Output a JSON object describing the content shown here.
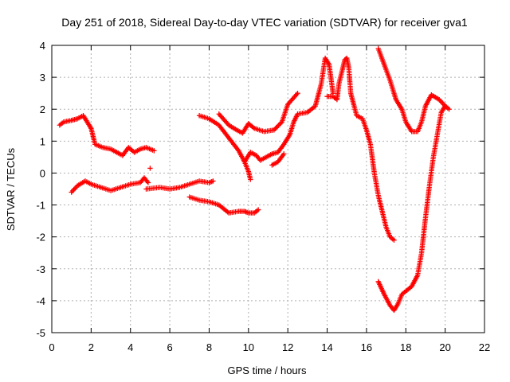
{
  "chart_data": {
    "type": "scatter",
    "title": "Day 251 of 2018, Sidereal Day-to-day VTEC variation (SDTVAR) for receiver gva1",
    "xlabel": "GPS time / hours",
    "ylabel": "SDTVAR / TECUs",
    "xlim": [
      0,
      22
    ],
    "ylim": [
      -5,
      4
    ],
    "x_ticks": [
      "0",
      "2",
      "4",
      "6",
      "8",
      "10",
      "12",
      "14",
      "16",
      "18",
      "20",
      "22"
    ],
    "y_ticks": [
      "-5",
      "-4",
      "-3",
      "-2",
      "-1",
      "0",
      "1",
      "2",
      "3",
      "4"
    ],
    "grid": true,
    "marker": "+",
    "color": "#ff0000",
    "segments": [
      {
        "points": [
          [
            0.4,
            1.5
          ],
          [
            0.6,
            1.6
          ],
          [
            1.0,
            1.65
          ],
          [
            1.3,
            1.7
          ],
          [
            1.6,
            1.8
          ],
          [
            1.8,
            1.6
          ],
          [
            2.0,
            1.4
          ],
          [
            2.2,
            0.9
          ],
          [
            2.6,
            0.8
          ],
          [
            3.0,
            0.75
          ],
          [
            3.3,
            0.65
          ],
          [
            3.6,
            0.55
          ],
          [
            3.9,
            0.8
          ],
          [
            4.2,
            0.65
          ],
          [
            4.5,
            0.75
          ],
          [
            4.8,
            0.8
          ],
          [
            5.2,
            0.7
          ]
        ]
      },
      {
        "points": [
          [
            1.0,
            -0.6
          ],
          [
            1.3,
            -0.4
          ],
          [
            1.7,
            -0.25
          ],
          [
            2.0,
            -0.35
          ],
          [
            2.5,
            -0.45
          ],
          [
            3.0,
            -0.55
          ],
          [
            3.5,
            -0.45
          ],
          [
            4.0,
            -0.35
          ],
          [
            4.5,
            -0.3
          ],
          [
            4.7,
            -0.15
          ],
          [
            4.9,
            -0.3
          ]
        ]
      },
      {
        "points": [
          [
            5.0,
            0.15
          ]
        ]
      },
      {
        "points": [
          [
            4.8,
            -0.5
          ],
          [
            5.5,
            -0.45
          ],
          [
            6.0,
            -0.5
          ],
          [
            6.5,
            -0.45
          ],
          [
            7.0,
            -0.35
          ],
          [
            7.5,
            -0.25
          ],
          [
            8.0,
            -0.3
          ],
          [
            8.2,
            -0.25
          ]
        ]
      },
      {
        "points": [
          [
            7.0,
            -0.75
          ],
          [
            7.5,
            -0.85
          ],
          [
            8.0,
            -0.9
          ],
          [
            8.5,
            -1.0
          ],
          [
            9.0,
            -1.25
          ],
          [
            9.5,
            -1.2
          ],
          [
            9.8,
            -1.2
          ],
          [
            10.0,
            -1.25
          ],
          [
            10.3,
            -1.25
          ],
          [
            10.5,
            -1.15
          ]
        ]
      },
      {
        "points": [
          [
            7.5,
            1.8
          ],
          [
            8.0,
            1.7
          ],
          [
            8.5,
            1.5
          ],
          [
            9.0,
            1.1
          ],
          [
            9.5,
            0.7
          ],
          [
            9.8,
            0.35
          ],
          [
            10.0,
            0.05
          ],
          [
            10.1,
            -0.2
          ]
        ]
      },
      {
        "points": [
          [
            8.5,
            1.85
          ],
          [
            9.0,
            1.5
          ],
          [
            9.4,
            1.35
          ],
          [
            9.7,
            1.25
          ],
          [
            10.0,
            1.55
          ],
          [
            10.3,
            1.4
          ],
          [
            10.8,
            1.3
          ],
          [
            11.3,
            1.35
          ],
          [
            11.7,
            1.6
          ],
          [
            12.0,
            2.15
          ],
          [
            12.5,
            2.5
          ]
        ]
      },
      {
        "points": [
          [
            9.8,
            0.35
          ],
          [
            10.1,
            0.65
          ],
          [
            10.4,
            0.55
          ],
          [
            10.6,
            0.4
          ],
          [
            10.9,
            0.5
          ],
          [
            11.2,
            0.6
          ],
          [
            11.5,
            0.65
          ],
          [
            11.8,
            0.9
          ],
          [
            12.1,
            1.2
          ],
          [
            12.3,
            1.6
          ],
          [
            12.5,
            1.85
          ],
          [
            13.0,
            1.9
          ],
          [
            13.4,
            2.1
          ],
          [
            13.7,
            2.8
          ],
          [
            13.9,
            3.6
          ],
          [
            14.1,
            3.4
          ],
          [
            14.3,
            2.5
          ]
        ]
      },
      {
        "points": [
          [
            11.2,
            0.25
          ],
          [
            11.5,
            0.35
          ],
          [
            11.8,
            0.6
          ]
        ]
      },
      {
        "points": [
          [
            14.0,
            2.4
          ],
          [
            14.3,
            2.4
          ],
          [
            14.5,
            2.3
          ],
          [
            14.6,
            2.8
          ],
          [
            14.8,
            3.3
          ],
          [
            14.9,
            3.55
          ],
          [
            15.0,
            3.6
          ],
          [
            15.1,
            3.3
          ],
          [
            15.2,
            2.5
          ],
          [
            15.5,
            1.8
          ],
          [
            15.8,
            1.7
          ],
          [
            16.0,
            1.35
          ],
          [
            16.2,
            0.9
          ],
          [
            16.4,
            0.0
          ],
          [
            16.6,
            -0.7
          ],
          [
            16.8,
            -1.2
          ],
          [
            17.0,
            -1.7
          ],
          [
            17.2,
            -2.0
          ],
          [
            17.4,
            -2.1
          ]
        ]
      },
      {
        "points": [
          [
            16.6,
            3.9
          ],
          [
            16.9,
            3.4
          ],
          [
            17.2,
            2.9
          ],
          [
            17.5,
            2.3
          ],
          [
            17.8,
            2.0
          ],
          [
            18.0,
            1.6
          ],
          [
            18.3,
            1.3
          ],
          [
            18.6,
            1.3
          ],
          [
            18.8,
            1.6
          ],
          [
            19.0,
            2.1
          ],
          [
            19.3,
            2.45
          ],
          [
            19.7,
            2.3
          ],
          [
            20.0,
            2.1
          ],
          [
            20.2,
            2.0
          ]
        ]
      },
      {
        "points": [
          [
            16.6,
            -3.4
          ],
          [
            16.9,
            -3.8
          ],
          [
            17.2,
            -4.15
          ],
          [
            17.4,
            -4.3
          ],
          [
            17.6,
            -4.1
          ],
          [
            17.8,
            -3.8
          ],
          [
            18.0,
            -3.7
          ],
          [
            18.3,
            -3.55
          ],
          [
            18.6,
            -3.2
          ],
          [
            18.8,
            -2.5
          ],
          [
            19.0,
            -1.4
          ],
          [
            19.2,
            -0.4
          ],
          [
            19.4,
            0.5
          ],
          [
            19.6,
            1.2
          ],
          [
            19.8,
            1.9
          ],
          [
            20.0,
            2.1
          ]
        ]
      }
    ]
  }
}
